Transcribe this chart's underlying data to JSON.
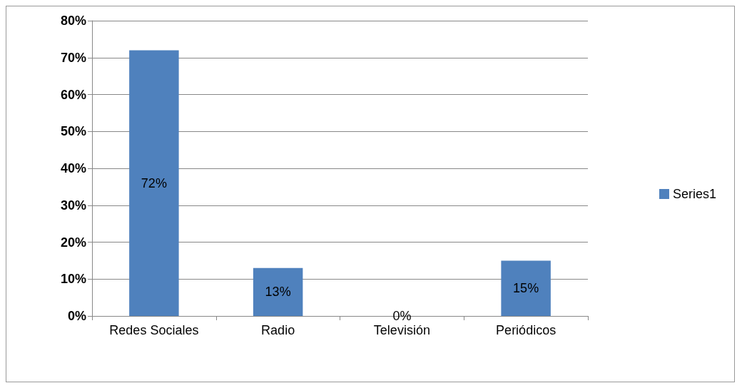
{
  "chart_data": {
    "type": "bar",
    "categories": [
      "Redes Sociales",
      "Radio",
      "Televisión",
      "Periódicos"
    ],
    "series": [
      {
        "name": "Series1",
        "color": "#4f81bd",
        "values": [
          72,
          13,
          0,
          15
        ],
        "value_labels": [
          "72%",
          "13%",
          "0%",
          "15%"
        ]
      }
    ],
    "ylim": [
      0,
      80
    ],
    "yticks": [
      {
        "value": 0,
        "label": "0%"
      },
      {
        "value": 10,
        "label": "10%"
      },
      {
        "value": 20,
        "label": "20%"
      },
      {
        "value": 30,
        "label": "30%"
      },
      {
        "value": 40,
        "label": "40%"
      },
      {
        "value": 50,
        "label": "50%"
      },
      {
        "value": 60,
        "label": "60%"
      },
      {
        "value": 70,
        "label": "70%"
      },
      {
        "value": 80,
        "label": "80%"
      }
    ],
    "grid": "y",
    "legend": "right"
  }
}
